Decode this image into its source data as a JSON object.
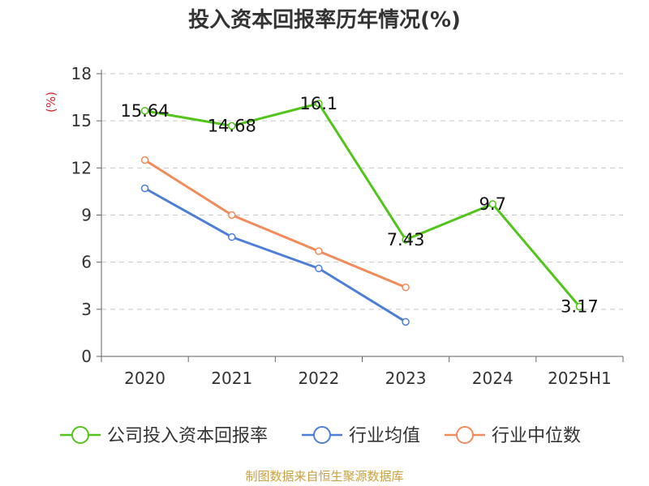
{
  "title": "投入资本回报率历年情况(%)",
  "source": "制图数据来自恒生聚源数据库",
  "chart_data": {
    "type": "line",
    "title": "投入资本回报率历年情况(%)",
    "ylabel": "(%)",
    "categories": [
      "2020",
      "2021",
      "2022",
      "2023",
      "2024",
      "2025H1"
    ],
    "ylim": [
      0,
      18
    ],
    "yticks": [
      0,
      3,
      6,
      9,
      12,
      15,
      18
    ],
    "grid": true,
    "legend_position": "bottom",
    "series": [
      {
        "name": "公司投入资本回报率",
        "color": "#52c41a",
        "values": [
          15.64,
          14.68,
          16.1,
          7.43,
          9.7,
          3.17
        ],
        "labels": [
          "15.64",
          "14.68",
          "16.1",
          "7.43",
          "9.7",
          "3.17"
        ]
      },
      {
        "name": "行业均值",
        "color": "#4e7fd8",
        "values": [
          10.7,
          7.6,
          5.6,
          2.2,
          null,
          null
        ]
      },
      {
        "name": "行业中位数",
        "color": "#f38a5a",
        "values": [
          12.5,
          9.0,
          6.7,
          4.4,
          null,
          null
        ]
      }
    ]
  }
}
